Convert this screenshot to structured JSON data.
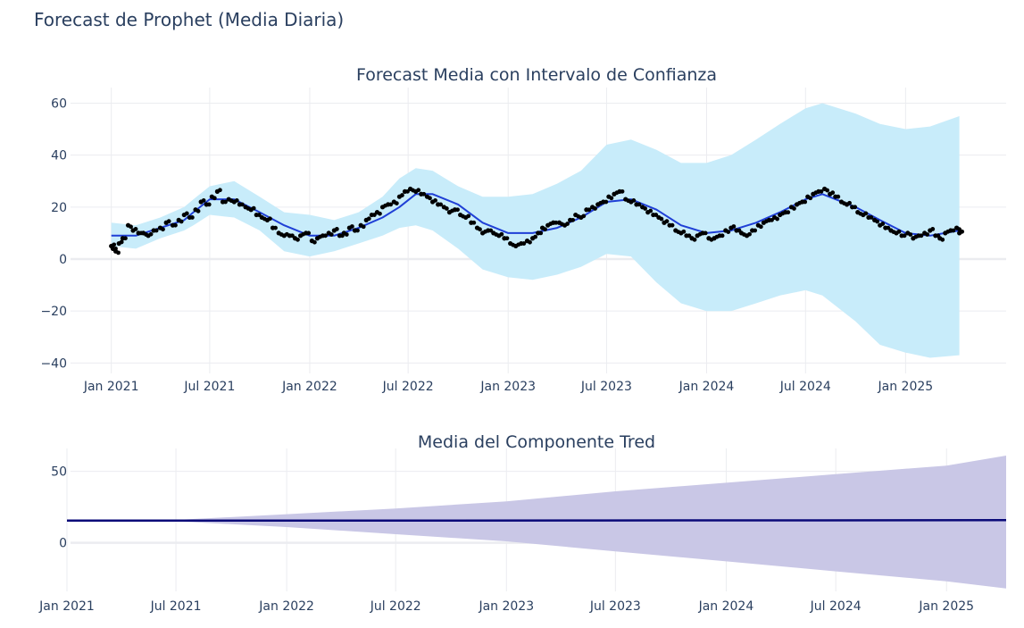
{
  "figure_title": "Forecast de Prophet (Media Diaria)",
  "colors": {
    "band_forecast": "#c8ecfa",
    "forecast_line": "#1f3fd6",
    "observed_points": "#000000",
    "band_trend": "#c9c7e6",
    "trend_line": "#0a0a78",
    "grid": "#ebecf0",
    "text": "#2a3f5f"
  },
  "chart_data": [
    {
      "type": "line",
      "title": "Forecast Media con Intervalo de Confianza",
      "xlabel": "",
      "ylabel": "",
      "x_tick_labels": [
        "Jan 2021",
        "Jul 2021",
        "Jan 2022",
        "Jul 2022",
        "Jan 2023",
        "Jul 2023",
        "Jan 2024",
        "Jul 2024",
        "Jan 2025"
      ],
      "y_tick_labels": [
        "−40",
        "−20",
        "0",
        "20",
        "40",
        "60"
      ],
      "xlim": [
        "2020-10-18",
        "2025-07-05"
      ],
      "ylim": [
        -44,
        66
      ],
      "grid": true,
      "series": [
        {
          "role": "upper bound",
          "x": [
            "2021-01-01",
            "2021-02-15",
            "2021-04-01",
            "2021-05-15",
            "2021-06-01",
            "2021-07-01",
            "2021-08-15",
            "2021-10-01",
            "2021-11-15",
            "2022-01-01",
            "2022-02-15",
            "2022-04-01",
            "2022-05-15",
            "2022-06-15",
            "2022-07-15",
            "2022-08-15",
            "2022-10-01",
            "2022-11-15",
            "2023-01-01",
            "2023-02-15",
            "2023-04-01",
            "2023-05-15",
            "2023-07-01",
            "2023-08-15",
            "2023-10-01",
            "2023-11-15",
            "2024-01-01",
            "2024-02-15",
            "2024-04-01",
            "2024-05-15",
            "2024-07-01",
            "2024-08-01",
            "2024-10-01",
            "2024-11-15",
            "2025-01-01",
            "2025-02-15",
            "2025-04-10"
          ],
          "values": [
            14,
            13,
            16,
            20,
            23,
            28,
            30,
            24,
            18,
            17,
            15,
            18,
            24,
            31,
            35,
            34,
            28,
            24,
            24,
            25,
            29,
            34,
            44,
            46,
            42,
            37,
            37,
            40,
            46,
            52,
            58,
            60,
            56,
            52,
            50,
            51,
            55
          ]
        },
        {
          "role": "lower bound",
          "x": [
            "2021-01-01",
            "2021-02-15",
            "2021-04-01",
            "2021-05-15",
            "2021-06-01",
            "2021-07-01",
            "2021-08-15",
            "2021-10-01",
            "2021-11-15",
            "2022-01-01",
            "2022-02-15",
            "2022-04-01",
            "2022-05-15",
            "2022-06-15",
            "2022-07-15",
            "2022-08-15",
            "2022-10-01",
            "2022-11-15",
            "2023-01-01",
            "2023-02-15",
            "2023-04-01",
            "2023-05-15",
            "2023-07-01",
            "2023-08-15",
            "2023-10-01",
            "2023-11-15",
            "2024-01-01",
            "2024-02-15",
            "2024-04-01",
            "2024-05-15",
            "2024-07-01",
            "2024-08-01",
            "2024-10-01",
            "2024-11-15",
            "2025-01-01",
            "2025-02-15",
            "2025-04-10"
          ],
          "values": [
            5,
            4,
            8,
            11,
            13,
            17,
            16,
            11,
            3,
            1,
            3,
            6,
            9,
            12,
            13,
            11,
            4,
            -4,
            -7,
            -8,
            -6,
            -3,
            2,
            1,
            -9,
            -17,
            -20,
            -20,
            -17,
            -14,
            -12,
            -14,
            -24,
            -33,
            -36,
            -38,
            -37
          ]
        },
        {
          "name": "forecast",
          "x": [
            "2021-01-01",
            "2021-02-15",
            "2021-04-01",
            "2021-05-15",
            "2021-06-01",
            "2021-07-01",
            "2021-08-15",
            "2021-10-01",
            "2021-11-15",
            "2022-01-01",
            "2022-02-15",
            "2022-04-01",
            "2022-05-15",
            "2022-06-15",
            "2022-07-15",
            "2022-08-15",
            "2022-10-01",
            "2022-11-15",
            "2023-01-01",
            "2023-02-15",
            "2023-04-01",
            "2023-05-15",
            "2023-07-01",
            "2023-08-15",
            "2023-10-01",
            "2023-11-15",
            "2024-01-01",
            "2024-02-15",
            "2024-04-01",
            "2024-05-15",
            "2024-07-01",
            "2024-08-01",
            "2024-10-01",
            "2024-11-15",
            "2025-01-01",
            "2025-02-15",
            "2025-04-10"
          ],
          "values": [
            9,
            9,
            12,
            15,
            18,
            23,
            23,
            18,
            13,
            9,
            9,
            12,
            16,
            20,
            25,
            25,
            21,
            14,
            10,
            10,
            12,
            16,
            22,
            23,
            19,
            13,
            10,
            11,
            14,
            18,
            23,
            25,
            20,
            15,
            10,
            9,
            11
          ]
        },
        {
          "name": "observed",
          "render": "points",
          "x": [
            "2021-01-01",
            "2021-01-04",
            "2021-01-09",
            "2021-01-15",
            "2021-01-22",
            "2021-02-01",
            "2021-02-10",
            "2021-02-20",
            "2021-03-01",
            "2021-03-10",
            "2021-03-20",
            "2021-04-01",
            "2021-04-12",
            "2021-04-24",
            "2021-05-05",
            "2021-05-15",
            "2021-05-25",
            "2021-06-05",
            "2021-06-15",
            "2021-06-25",
            "2021-07-05",
            "2021-07-15",
            "2021-07-25",
            "2021-08-05",
            "2021-08-15",
            "2021-08-25",
            "2021-09-05",
            "2021-09-15",
            "2021-09-25",
            "2021-10-05",
            "2021-10-15",
            "2021-10-25",
            "2021-11-05",
            "2021-11-15",
            "2021-11-25",
            "2021-12-05",
            "2021-12-15",
            "2021-12-25",
            "2022-01-05",
            "2022-01-15",
            "2022-01-25",
            "2022-02-05",
            "2022-02-15",
            "2022-02-25",
            "2022-03-05",
            "2022-03-15",
            "2022-03-25",
            "2022-04-05",
            "2022-04-15",
            "2022-04-25",
            "2022-05-05",
            "2022-05-15",
            "2022-05-25",
            "2022-06-05",
            "2022-06-15",
            "2022-06-25",
            "2022-07-05",
            "2022-07-15",
            "2022-07-25",
            "2022-08-05",
            "2022-08-15",
            "2022-08-25",
            "2022-09-05",
            "2022-09-15",
            "2022-09-25",
            "2022-10-05",
            "2022-10-15",
            "2022-10-25",
            "2022-11-05",
            "2022-11-15",
            "2022-11-25",
            "2022-12-05",
            "2022-12-15",
            "2022-12-25",
            "2023-01-05",
            "2023-01-15",
            "2023-01-25",
            "2023-02-05",
            "2023-02-15",
            "2023-02-25",
            "2023-03-05",
            "2023-03-15",
            "2023-03-25",
            "2023-04-05",
            "2023-04-15",
            "2023-04-25",
            "2023-05-05",
            "2023-05-15",
            "2023-05-25",
            "2023-06-05",
            "2023-06-15",
            "2023-06-25",
            "2023-07-05",
            "2023-07-15",
            "2023-07-25",
            "2023-08-05",
            "2023-08-15",
            "2023-08-25",
            "2023-09-05",
            "2023-09-15",
            "2023-09-25",
            "2023-10-05",
            "2023-10-15",
            "2023-10-25",
            "2023-11-05",
            "2023-11-15",
            "2023-11-25",
            "2023-12-05",
            "2023-12-15",
            "2023-12-25",
            "2024-01-05",
            "2024-01-15",
            "2024-01-25",
            "2024-02-05",
            "2024-02-15",
            "2024-02-25",
            "2024-03-05",
            "2024-03-15",
            "2024-03-25",
            "2024-04-05",
            "2024-04-15",
            "2024-04-25",
            "2024-05-05",
            "2024-05-15",
            "2024-05-25",
            "2024-06-05",
            "2024-06-15",
            "2024-06-25",
            "2024-07-05",
            "2024-07-15",
            "2024-07-25",
            "2024-08-05",
            "2024-08-15",
            "2024-08-25",
            "2024-09-05",
            "2024-09-15",
            "2024-09-25",
            "2024-10-05",
            "2024-10-15",
            "2024-10-25",
            "2024-11-05",
            "2024-11-15",
            "2024-11-25",
            "2024-12-05",
            "2024-12-15",
            "2024-12-25",
            "2025-01-05",
            "2025-01-15",
            "2025-01-25",
            "2025-02-05",
            "2025-02-15",
            "2025-02-25",
            "2025-03-05",
            "2025-03-15",
            "2025-03-25",
            "2025-04-05",
            "2025-04-10"
          ],
          "values": [
            5,
            4,
            3,
            6,
            8,
            13,
            11,
            10,
            10,
            9,
            11,
            12,
            14,
            13,
            15,
            17,
            16,
            19,
            22,
            21,
            24,
            26,
            22,
            23,
            22,
            21,
            20,
            19,
            17,
            16,
            15,
            12,
            10,
            9,
            9,
            8,
            9,
            10,
            7,
            8,
            9,
            10,
            11,
            9,
            10,
            12,
            11,
            13,
            15,
            17,
            18,
            20,
            21,
            22,
            24,
            26,
            27,
            26,
            25,
            24,
            22,
            21,
            20,
            18,
            19,
            17,
            16,
            14,
            12,
            10,
            11,
            10,
            9,
            8,
            6,
            5,
            6,
            7,
            8,
            10,
            12,
            13,
            14,
            14,
            13,
            15,
            17,
            16,
            19,
            20,
            21,
            22,
            24,
            25,
            26,
            23,
            22,
            21,
            20,
            18,
            17,
            16,
            14,
            13,
            11,
            10,
            9,
            8,
            9,
            10,
            8,
            8,
            9,
            11,
            12,
            11,
            10,
            9,
            11,
            13,
            14,
            15,
            16,
            17,
            18,
            20,
            21,
            22,
            24,
            25,
            26,
            27,
            25,
            24,
            22,
            21,
            20,
            18,
            17,
            16,
            15,
            13,
            12,
            11,
            10,
            9,
            10,
            8,
            9,
            10,
            11,
            9,
            8,
            10,
            11,
            12,
            10
          ]
        }
      ]
    },
    {
      "type": "line",
      "title": "Media del Componente Tred",
      "xlabel": "",
      "ylabel": "",
      "x_tick_labels": [
        "Jan 2021",
        "Jul 2021",
        "Jan 2022",
        "Jul 2022",
        "Jan 2023",
        "Jul 2023",
        "Jan 2024",
        "Jul 2024",
        "Jan 2025"
      ],
      "y_tick_labels": [
        "0",
        "50"
      ],
      "xlim": [
        "2021-01-01",
        "2025-04-10"
      ],
      "ylim": [
        -34,
        66
      ],
      "grid": true,
      "series": [
        {
          "role": "upper bound",
          "x": [
            "2021-01-01",
            "2021-06-01",
            "2021-07-01",
            "2022-01-01",
            "2022-07-01",
            "2023-01-01",
            "2023-07-01",
            "2024-01-01",
            "2024-07-01",
            "2025-01-01",
            "2025-04-10"
          ],
          "values": [
            15.5,
            15.5,
            16,
            20,
            24,
            29,
            36,
            42,
            48,
            54,
            61
          ]
        },
        {
          "role": "lower bound",
          "x": [
            "2021-01-01",
            "2021-06-01",
            "2021-07-01",
            "2022-01-01",
            "2022-07-01",
            "2023-01-01",
            "2023-07-01",
            "2024-01-01",
            "2024-07-01",
            "2025-01-01",
            "2025-04-10"
          ],
          "values": [
            15.5,
            15.5,
            15,
            11,
            6,
            1,
            -6,
            -13,
            -20,
            -27,
            -32
          ]
        },
        {
          "name": "trend",
          "x": [
            "2021-01-01",
            "2021-06-01",
            "2022-06-01",
            "2023-06-01",
            "2024-06-01",
            "2025-04-10"
          ],
          "values": [
            15.5,
            15.5,
            15.5,
            15.6,
            15.7,
            15.8
          ]
        }
      ]
    }
  ]
}
